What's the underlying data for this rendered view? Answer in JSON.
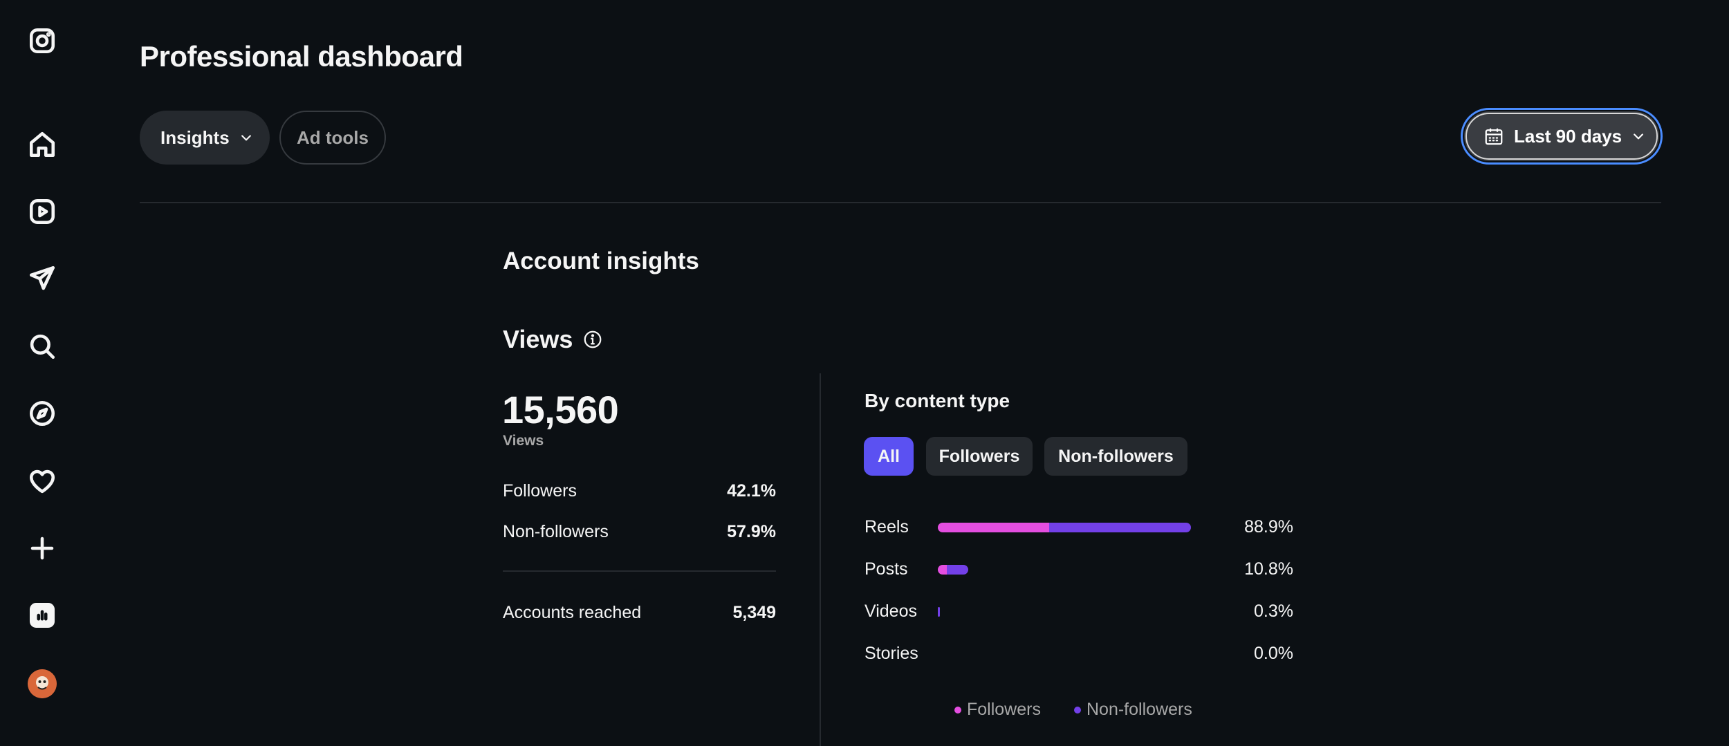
{
  "page": {
    "title": "Professional dashboard"
  },
  "toolbar": {
    "insights_label": "Insights",
    "adtools_label": "Ad tools",
    "date_range_label": "Last 90 days"
  },
  "sidebar": {
    "icons": [
      "instagram-logo-icon",
      "home-icon",
      "reels-icon",
      "messages-icon",
      "search-icon",
      "explore-icon",
      "notifications-icon",
      "create-icon",
      "dashboard-icon",
      "profile-avatar"
    ]
  },
  "insights": {
    "section_title": "Account insights",
    "views_title": "Views",
    "views_total": "15,560",
    "views_sub": "Views",
    "followers_label": "Followers",
    "followers_value": "42.1%",
    "nonfollowers_label": "Non-followers",
    "nonfollowers_value": "57.9%",
    "reached_label": "Accounts reached",
    "reached_value": "5,349"
  },
  "content_type": {
    "title": "By content type",
    "chips": [
      "All",
      "Followers",
      "Non-followers"
    ],
    "active_chip": "All",
    "colors": {
      "followers": "#e44ee0",
      "nonfollowers": "#7340e8",
      "active_chip": "#5b51f2"
    },
    "rows": [
      {
        "label": "Reels",
        "pct": "88.9%",
        "share": 0.889,
        "followers_part": 0.44
      },
      {
        "label": "Posts",
        "pct": "10.8%",
        "share": 0.108,
        "followers_part": 0.3
      },
      {
        "label": "Videos",
        "pct": "0.3%",
        "share": 0.003,
        "followers_part": 0.0
      },
      {
        "label": "Stories",
        "pct": "0.0%",
        "share": 0.0,
        "followers_part": 0.0
      }
    ],
    "legend": {
      "followers": "Followers",
      "nonfollowers": "Non-followers"
    }
  }
}
